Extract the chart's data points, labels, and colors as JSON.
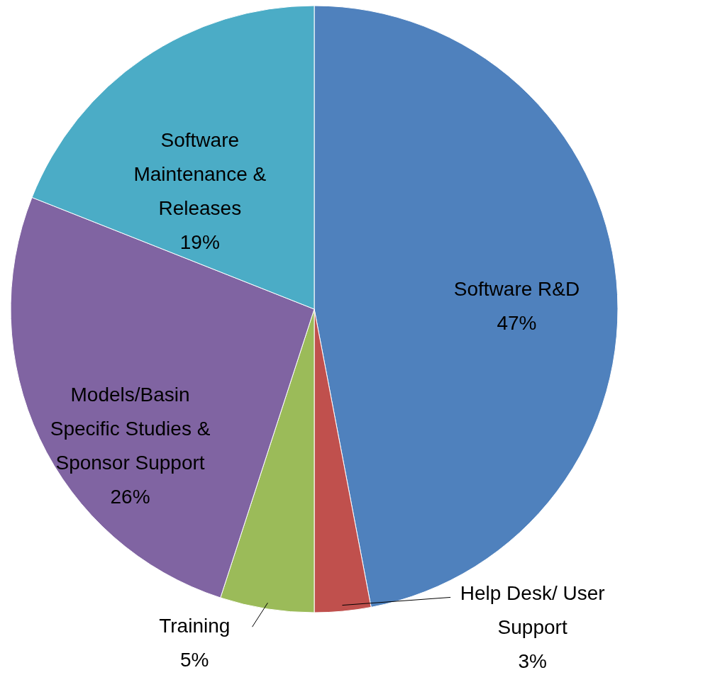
{
  "chart_data": {
    "type": "pie",
    "categories": [
      "Software R&D",
      "Help Desk/ User Support",
      "Training",
      "Models/Basin Specific Studies & Sponsor Support",
      "Software Maintenance & Releases"
    ],
    "values": [
      47,
      3,
      5,
      26,
      19
    ],
    "value_labels": [
      "47%",
      "3%",
      "5%",
      "26%",
      "19%"
    ],
    "colors": [
      "#4f81bd",
      "#c0504d",
      "#9bbb59",
      "#8064a2",
      "#4bacc6"
    ]
  }
}
